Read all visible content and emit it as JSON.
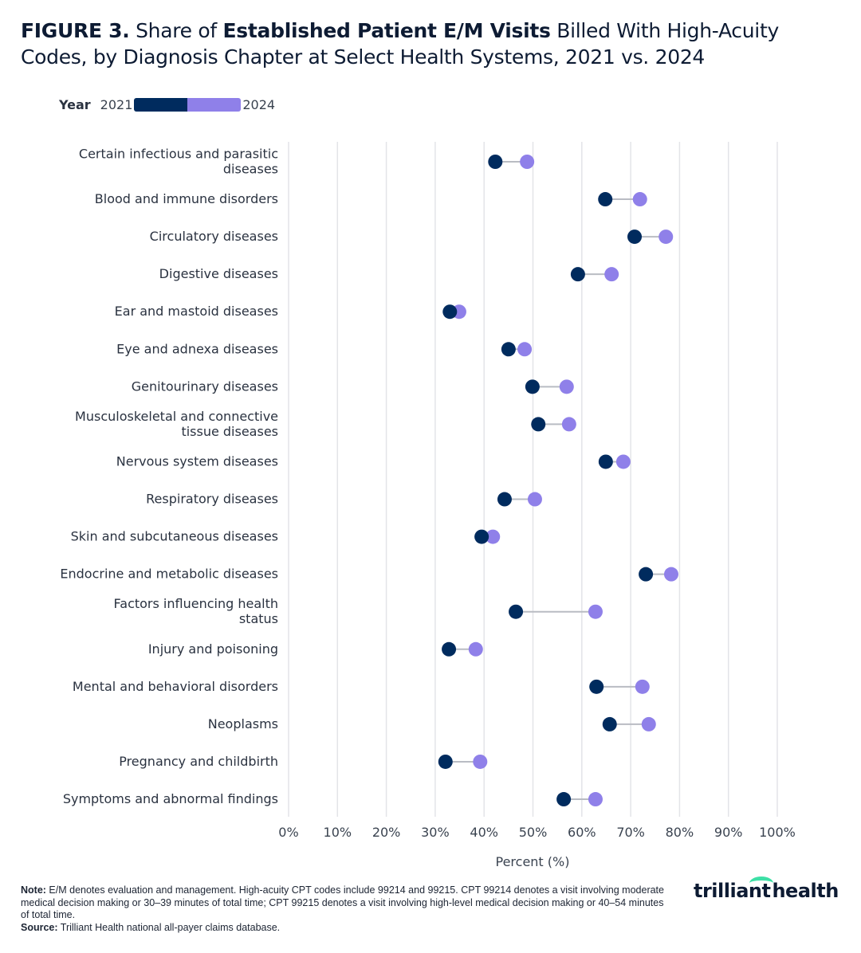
{
  "title": {
    "prefix": "FIGURE 3.",
    "part1": " Share of ",
    "bold": "Established Patient E/M Visits",
    "part2": " Billed With High-Acuity Codes, by Diagnosis Chapter at Select Health Systems, 2021 vs. 2024"
  },
  "legend": {
    "title": "Year",
    "start": "2021",
    "end": "2024"
  },
  "colors": {
    "y2021": "#002b5e",
    "y2024": "#8f80e9",
    "connector": "#b9bcc3",
    "grid": "#e3e4e8"
  },
  "chart_data": {
    "type": "dumbbell",
    "xlabel": "Percent (%)",
    "xlim": [
      0,
      100
    ],
    "xticks": [
      "0%",
      "10%",
      "20%",
      "30%",
      "40%",
      "50%",
      "60%",
      "70%",
      "80%",
      "90%",
      "100%"
    ],
    "grid": "vertical",
    "legend_placement": "top-left",
    "categories": [
      "Certain infectious and parasitic diseases",
      "Blood and immune disorders",
      "Circulatory diseases",
      "Digestive diseases",
      "Ear and mastoid diseases",
      "Eye and adnexa diseases",
      "Genitourinary diseases",
      "Musculoskeletal and connective tissue diseases",
      "Nervous system diseases",
      "Respiratory diseases",
      "Skin and subcutaneous diseases",
      "Endocrine and metabolic diseases",
      "Factors influencing health status",
      "Injury and poisoning",
      "Mental and behavioral disorders",
      "Neoplasms",
      "Pregnancy and childbirth",
      "Symptoms and abnormal findings"
    ],
    "series": [
      {
        "name": "2021",
        "values": [
          42.3,
          64.8,
          70.8,
          59.2,
          33.0,
          45.0,
          49.9,
          51.1,
          64.9,
          44.2,
          39.5,
          73.1,
          46.5,
          32.8,
          63.0,
          65.7,
          32.1,
          56.3
        ]
      },
      {
        "name": "2024",
        "values": [
          48.8,
          71.9,
          77.2,
          66.1,
          34.9,
          48.3,
          56.9,
          57.4,
          68.5,
          50.4,
          41.8,
          78.3,
          62.8,
          38.3,
          72.4,
          73.7,
          39.2,
          62.8
        ]
      }
    ]
  },
  "notes": {
    "note_label": "Note:",
    "note_text": " E/M denotes evaluation and management. High-acuity CPT codes include 99214 and 99215. CPT 99214 denotes a visit involving moderate medical decision making or 30–39 minutes of total time; CPT 99215 denotes a visit involving high-level medical decision making or 40–54 minutes of total time.",
    "source_label": "Source:",
    "source_text": " Trilliant Health national all-payer claims database."
  },
  "logo": {
    "text": "trilliant health"
  }
}
